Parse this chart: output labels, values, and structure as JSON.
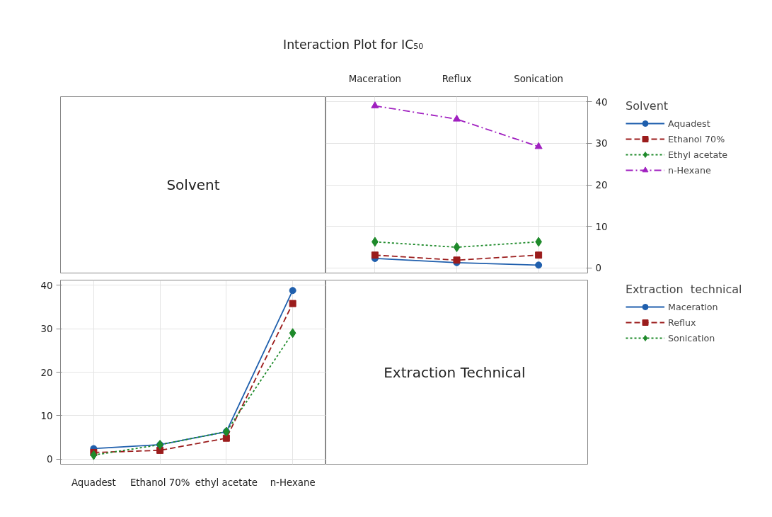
{
  "chart_data": [
    {
      "type": "other",
      "title": "Interaction Plot for IC₅₀",
      "annotations": [
        "Solvent"
      ]
    },
    {
      "type": "line",
      "categories": [
        "Maceration",
        "Reflux",
        "Sonication"
      ],
      "ylim": [
        -1.2,
        41.2
      ],
      "yticks": [
        0,
        10,
        20,
        30,
        40
      ],
      "grid": true,
      "legend": "right",
      "legend_title": "Solvent",
      "series": [
        {
          "name": "Aquadest",
          "color": "#1f5fad",
          "marker": "circle",
          "line_style": "solid",
          "values": [
            2.3,
            1.3,
            0.7
          ]
        },
        {
          "name": "Ethanol 70%",
          "color": "#9b1c1c",
          "marker": "square",
          "line_style": "dashed",
          "values": [
            3.1,
            1.9,
            3.1
          ]
        },
        {
          "name": "Ethyl acetate",
          "color": "#1e8a2a",
          "marker": "diamond",
          "line_style": "dotted",
          "values": [
            6.3,
            5.0,
            6.3
          ]
        },
        {
          "name": "n-Hexane",
          "color": "#a020c0",
          "marker": "triangle",
          "line_style": "dashdot",
          "values": [
            39.0,
            35.8,
            29.2
          ]
        }
      ]
    },
    {
      "type": "line",
      "categories": [
        "Aquadest",
        "Ethanol 70%",
        "ethyl acetate",
        "n-Hexane"
      ],
      "ylim": [
        -1.2,
        41.2
      ],
      "yticks": [
        0,
        10,
        20,
        30,
        40
      ],
      "grid": true,
      "legend": "right",
      "legend_title": "Extraction  technical",
      "series": [
        {
          "name": "Maceration",
          "color": "#1f5fad",
          "marker": "circle",
          "line_style": "solid",
          "values": [
            2.4,
            3.3,
            6.3,
            38.8
          ]
        },
        {
          "name": "Reflux",
          "color": "#9b1c1c",
          "marker": "square",
          "line_style": "dashed",
          "values": [
            1.5,
            2.0,
            4.8,
            35.8
          ]
        },
        {
          "name": "Sonication",
          "color": "#1e8a2a",
          "marker": "diamond",
          "line_style": "dotted",
          "values": [
            0.9,
            3.3,
            6.3,
            29.0
          ]
        }
      ]
    },
    {
      "type": "other",
      "annotations": [
        "Extraction  Technical"
      ]
    }
  ]
}
